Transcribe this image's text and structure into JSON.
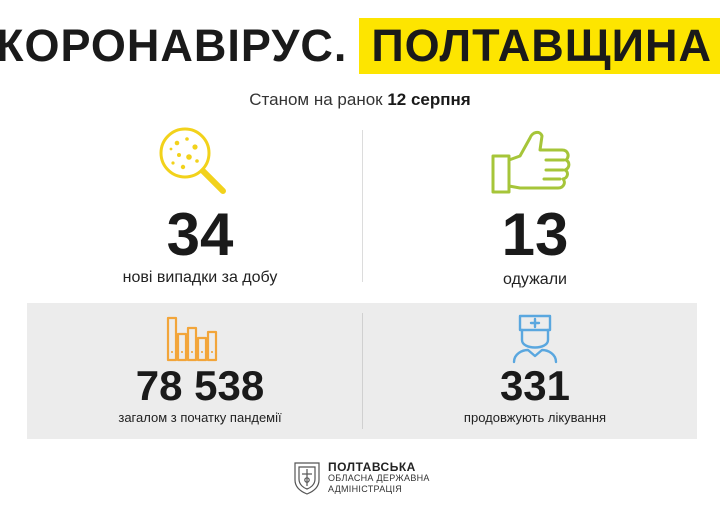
{
  "header": {
    "title_part1": "КОРОНАВІРУС.",
    "title_part2": "ПОЛТАВЩИНА",
    "subtitle_prefix": "Станом на ранок",
    "subtitle_date": "12 серпня"
  },
  "stats": {
    "new_cases": {
      "value": "34",
      "label": "нові випадки за добу",
      "icon": "virus-magnifier-icon"
    },
    "recovered": {
      "value": "13",
      "label": "одужали",
      "icon": "thumbs-up-icon"
    },
    "total": {
      "value": "78 538",
      "label": "загалом з початку пандемії",
      "icon": "bar-chart-icon"
    },
    "treatment": {
      "value": "331",
      "label": "продовжують лікування",
      "icon": "medic-icon"
    }
  },
  "footer": {
    "org_line1": "ПОЛТАВСЬКА",
    "org_line2": "ОБЛАСНА ДЕРЖАВНА",
    "org_line3": "АДМІНІСТРАЦІЯ",
    "icon": "coat-of-arms-icon"
  },
  "colors": {
    "accent_yellow": "#fde500",
    "icon_yellow": "#f2d21b",
    "icon_green": "#a6c539",
    "icon_orange": "#f2a53a",
    "icon_blue": "#5aa7df",
    "panel_grey": "#ececec"
  }
}
